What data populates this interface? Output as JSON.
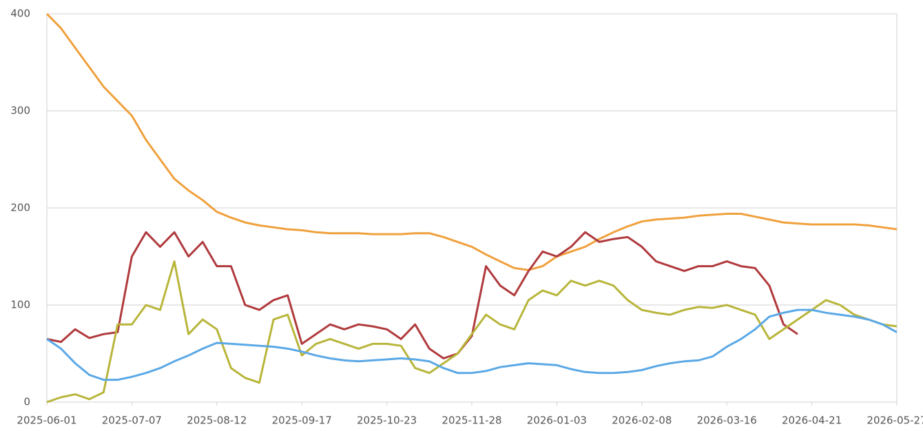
{
  "chart_data": {
    "type": "line",
    "x": [
      "2025-06-01",
      "2025-06-07",
      "2025-06-13",
      "2025-06-19",
      "2025-06-25",
      "2025-07-01",
      "2025-07-07",
      "2025-07-13",
      "2025-07-19",
      "2025-07-25",
      "2025-07-31",
      "2025-08-06",
      "2025-08-12",
      "2025-08-18",
      "2025-08-24",
      "2025-08-30",
      "2025-09-05",
      "2025-09-11",
      "2025-09-17",
      "2025-09-23",
      "2025-09-29",
      "2025-10-05",
      "2025-10-11",
      "2025-10-17",
      "2025-10-23",
      "2025-10-29",
      "2025-11-04",
      "2025-11-10",
      "2025-11-16",
      "2025-11-22",
      "2025-11-28",
      "2025-12-04",
      "2025-12-10",
      "2025-12-16",
      "2025-12-22",
      "2025-12-28",
      "2026-01-03",
      "2026-01-09",
      "2026-01-15",
      "2026-01-21",
      "2026-01-27",
      "2026-02-02",
      "2026-02-08",
      "2026-02-14",
      "2026-02-20",
      "2026-02-26",
      "2026-03-04",
      "2026-03-10",
      "2026-03-16",
      "2026-03-22",
      "2026-03-28",
      "2026-04-03",
      "2026-04-09",
      "2026-04-15",
      "2026-04-21",
      "2026-04-27",
      "2026-05-03",
      "2026-05-09",
      "2026-05-15",
      "2026-05-21",
      "2026-05-27"
    ],
    "series": [
      {
        "color": "#f0a03c",
        "values": [
          400,
          385,
          365,
          345,
          325,
          310,
          295,
          270,
          250,
          230,
          218,
          208,
          196,
          190,
          185,
          182,
          180,
          178,
          177,
          175,
          174,
          174,
          174,
          173,
          173,
          173,
          174,
          174,
          170,
          165,
          160,
          152,
          145,
          138,
          136,
          140,
          150,
          155,
          160,
          168,
          175,
          181,
          186,
          188,
          189,
          190,
          192,
          193,
          194,
          194,
          191,
          188,
          185,
          184,
          183,
          183,
          183,
          183,
          182,
          180,
          178
        ]
      },
      {
        "color": "#b0393c",
        "values": [
          65,
          62,
          75,
          66,
          70,
          72,
          150,
          175,
          160,
          175,
          150,
          165,
          140,
          140,
          100,
          95,
          105,
          110,
          60,
          70,
          80,
          75,
          80,
          78,
          75,
          65,
          80,
          55,
          45,
          50,
          68,
          140,
          120,
          110,
          135,
          155,
          150,
          160,
          175,
          165,
          168,
          170,
          160,
          145,
          140,
          135,
          140,
          140,
          145,
          140,
          138,
          120,
          80,
          70,
          null,
          null,
          null,
          null,
          null,
          null,
          null
        ]
      },
      {
        "color": "#b8b53a",
        "values": [
          0,
          5,
          8,
          3,
          10,
          80,
          80,
          100,
          95,
          145,
          70,
          85,
          75,
          35,
          25,
          20,
          85,
          90,
          48,
          60,
          65,
          60,
          55,
          60,
          60,
          58,
          35,
          30,
          40,
          50,
          70,
          90,
          80,
          75,
          105,
          115,
          110,
          125,
          120,
          125,
          120,
          105,
          95,
          92,
          90,
          95,
          98,
          97,
          100,
          95,
          90,
          65,
          75,
          85,
          95,
          105,
          100,
          90,
          85,
          80,
          78
        ]
      },
      {
        "color": "#5aa8e6",
        "values": [
          65,
          55,
          40,
          28,
          23,
          23,
          26,
          30,
          35,
          42,
          48,
          55,
          61,
          60,
          59,
          58,
          57,
          55,
          52,
          48,
          45,
          43,
          42,
          43,
          44,
          45,
          44,
          42,
          35,
          30,
          30,
          32,
          36,
          38,
          40,
          39,
          38,
          34,
          31,
          30,
          30,
          31,
          33,
          37,
          40,
          42,
          43,
          47,
          57,
          65,
          75,
          88,
          92,
          95,
          95,
          92,
          90,
          88,
          85,
          80,
          72
        ]
      }
    ],
    "xlim": [
      "2025-06-01",
      "2026-05-27"
    ],
    "xticks": [
      "2025-06-01",
      "2025-07-07",
      "2025-08-12",
      "2025-09-17",
      "2025-10-23",
      "2025-11-28",
      "2026-01-03",
      "2026-02-08",
      "2026-03-16",
      "2026-04-21",
      "2026-05-27"
    ],
    "ylim": [
      0,
      400
    ],
    "yticks": [
      0,
      100,
      200,
      300,
      400
    ],
    "grid": true
  }
}
